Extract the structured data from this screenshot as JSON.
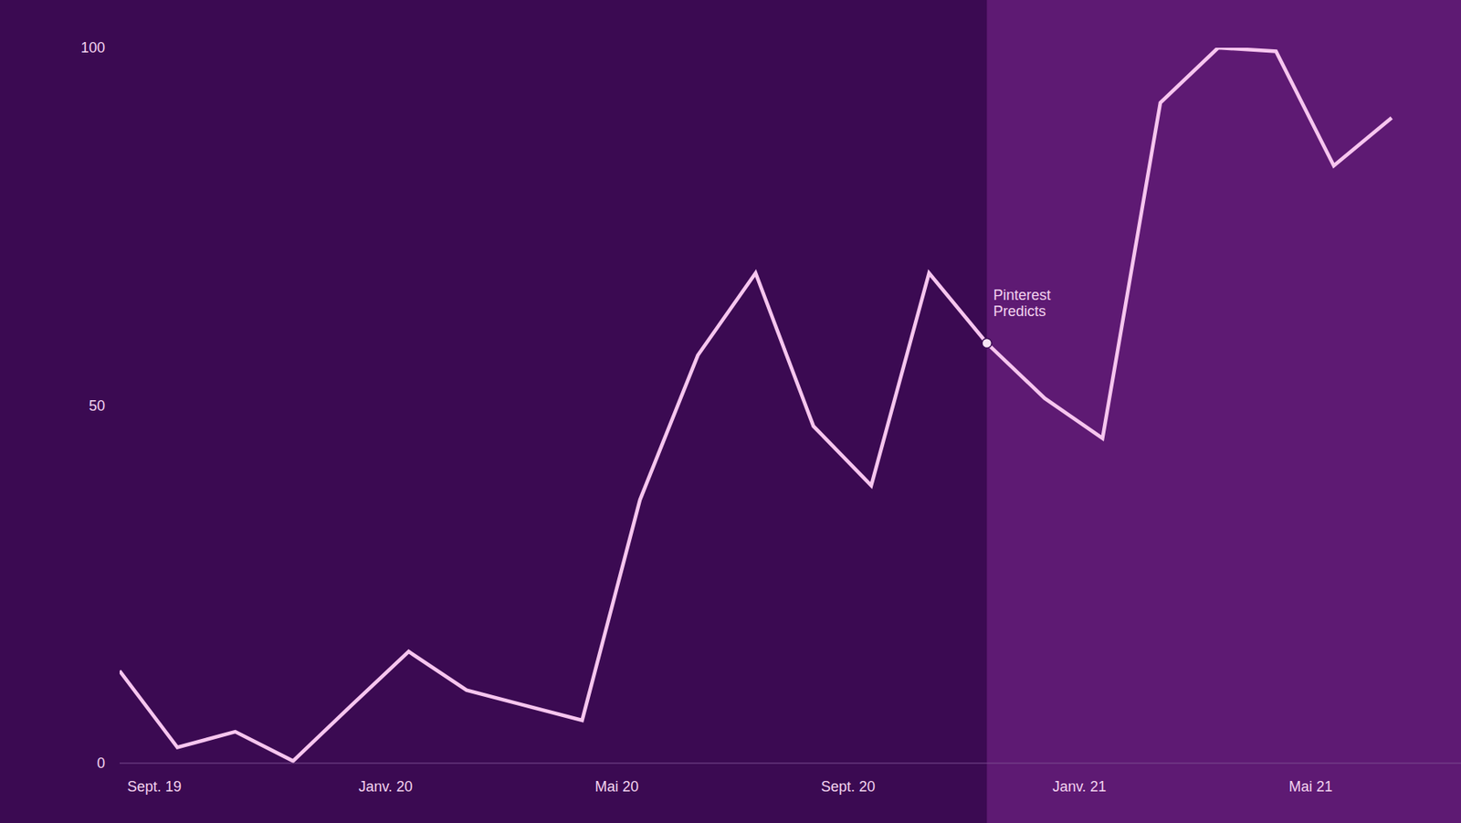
{
  "chart_data": {
    "type": "line",
    "x": [
      0,
      1,
      2,
      3,
      4,
      5,
      6,
      7,
      8,
      9,
      10,
      11,
      12,
      13,
      14,
      15,
      16,
      17,
      18,
      19,
      20,
      21,
      22
    ],
    "values": [
      12.9,
      2.2,
      4.4,
      0.3,
      8.0,
      15.6,
      10.2,
      8.1,
      6.0,
      36.8,
      57.0,
      68.5,
      47.1,
      38.8,
      68.5,
      58.7,
      51.0,
      45.4,
      92.3,
      100,
      99.5,
      83.5,
      90.2
    ],
    "color": "#f7c6ef",
    "xlim": [
      0,
      23.2
    ],
    "xticks": [
      {
        "value": 0.6,
        "label": "Sept. 19"
      },
      {
        "value": 4.6,
        "label": "Janv. 20"
      },
      {
        "value": 8.6,
        "label": "Mai 20"
      },
      {
        "value": 12.6,
        "label": "Sept. 20"
      },
      {
        "value": 16.6,
        "label": "Janv. 21"
      },
      {
        "value": 20.6,
        "label": "Mai 21"
      }
    ],
    "ylim": [
      0,
      100
    ],
    "yticks": [
      0,
      50,
      100
    ],
    "grid": false,
    "annotations": [
      {
        "text": "Pinterest Predicts",
        "x": 15
      }
    ]
  }
}
